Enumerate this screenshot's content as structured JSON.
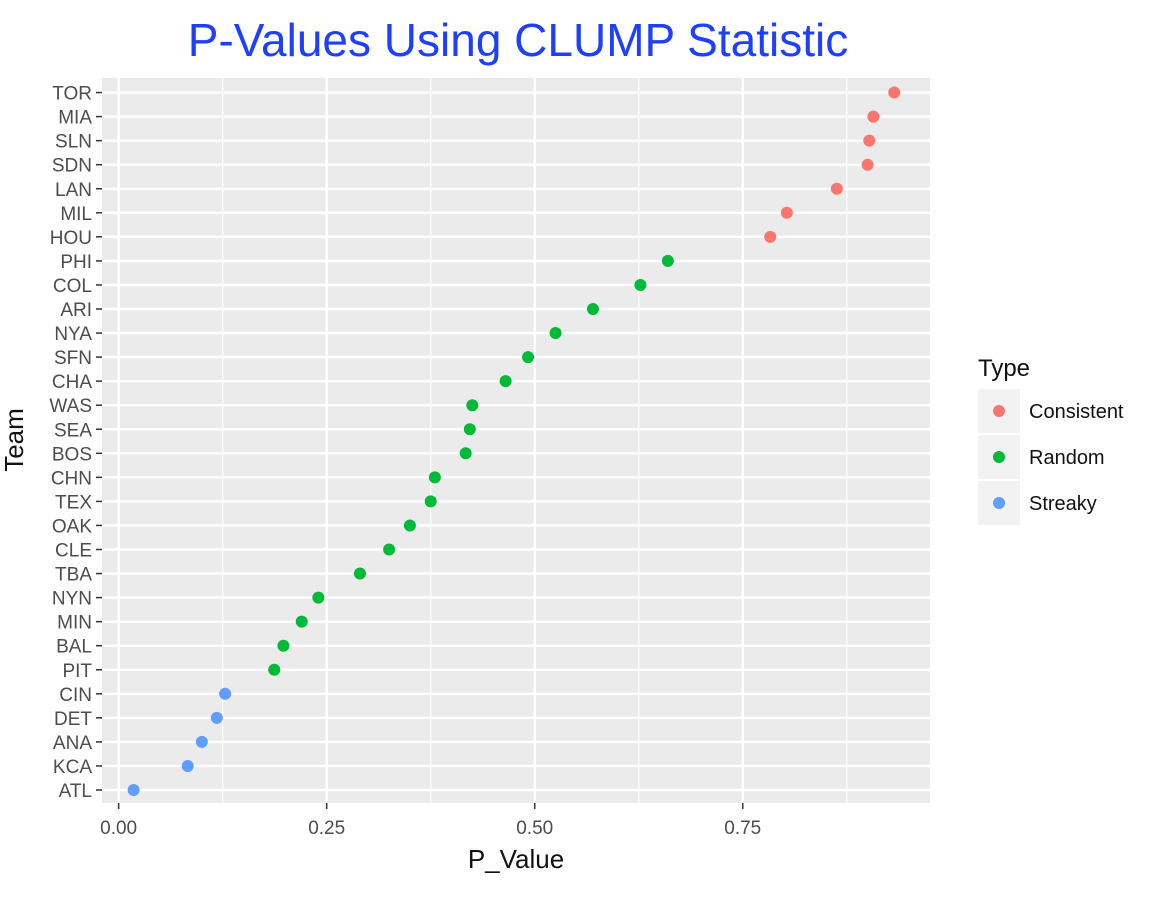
{
  "chart_data": {
    "type": "scatter",
    "title": "P-Values Using CLUMP Statistic",
    "title_color": "#1f3fff",
    "xlabel": "P_Value",
    "ylabel": "Team",
    "xlim": [
      -0.02,
      0.975
    ],
    "x_ticks": [
      0,
      0.25,
      0.5,
      0.75
    ],
    "x_tick_labels": [
      "0.00",
      "0.25",
      "0.50",
      "0.75"
    ],
    "grid": true,
    "panel_color": "#ebebeb",
    "categories": [
      "ATL",
      "KCA",
      "ANA",
      "DET",
      "CIN",
      "PIT",
      "BAL",
      "MIN",
      "NYN",
      "TBA",
      "CLE",
      "OAK",
      "TEX",
      "CHN",
      "BOS",
      "SEA",
      "WAS",
      "CHA",
      "SFN",
      "NYA",
      "ARI",
      "COL",
      "PHI",
      "HOU",
      "MIL",
      "LAN",
      "SDN",
      "SLN",
      "MIA",
      "TOR"
    ],
    "legend": {
      "title": "Type",
      "position": "right",
      "entries": [
        {
          "label": "Consistent",
          "color": "#f8766d"
        },
        {
          "label": "Random",
          "color": "#00ba38"
        },
        {
          "label": "Streaky",
          "color": "#619cff"
        }
      ]
    },
    "series": [
      {
        "name": "Consistent",
        "color": "#f8766d",
        "points": [
          {
            "team": "TOR",
            "x": 0.932
          },
          {
            "team": "MIA",
            "x": 0.907
          },
          {
            "team": "SLN",
            "x": 0.902
          },
          {
            "team": "SDN",
            "x": 0.9
          },
          {
            "team": "LAN",
            "x": 0.863
          },
          {
            "team": "MIL",
            "x": 0.803
          },
          {
            "team": "HOU",
            "x": 0.783
          }
        ]
      },
      {
        "name": "Random",
        "color": "#00ba38",
        "points": [
          {
            "team": "PHI",
            "x": 0.66
          },
          {
            "team": "COL",
            "x": 0.627
          },
          {
            "team": "ARI",
            "x": 0.57
          },
          {
            "team": "NYA",
            "x": 0.525
          },
          {
            "team": "SFN",
            "x": 0.492
          },
          {
            "team": "CHA",
            "x": 0.465
          },
          {
            "team": "WAS",
            "x": 0.425
          },
          {
            "team": "SEA",
            "x": 0.422
          },
          {
            "team": "BOS",
            "x": 0.417
          },
          {
            "team": "CHN",
            "x": 0.38
          },
          {
            "team": "TEX",
            "x": 0.375
          },
          {
            "team": "OAK",
            "x": 0.35
          },
          {
            "team": "CLE",
            "x": 0.325
          },
          {
            "team": "TBA",
            "x": 0.29
          },
          {
            "team": "NYN",
            "x": 0.24
          },
          {
            "team": "MIN",
            "x": 0.22
          },
          {
            "team": "BAL",
            "x": 0.198
          },
          {
            "team": "PIT",
            "x": 0.187
          }
        ]
      },
      {
        "name": "Streaky",
        "color": "#619cff",
        "points": [
          {
            "team": "CIN",
            "x": 0.128
          },
          {
            "team": "DET",
            "x": 0.118
          },
          {
            "team": "ANA",
            "x": 0.1
          },
          {
            "team": "KCA",
            "x": 0.083
          },
          {
            "team": "ATL",
            "x": 0.018
          }
        ]
      }
    ]
  }
}
